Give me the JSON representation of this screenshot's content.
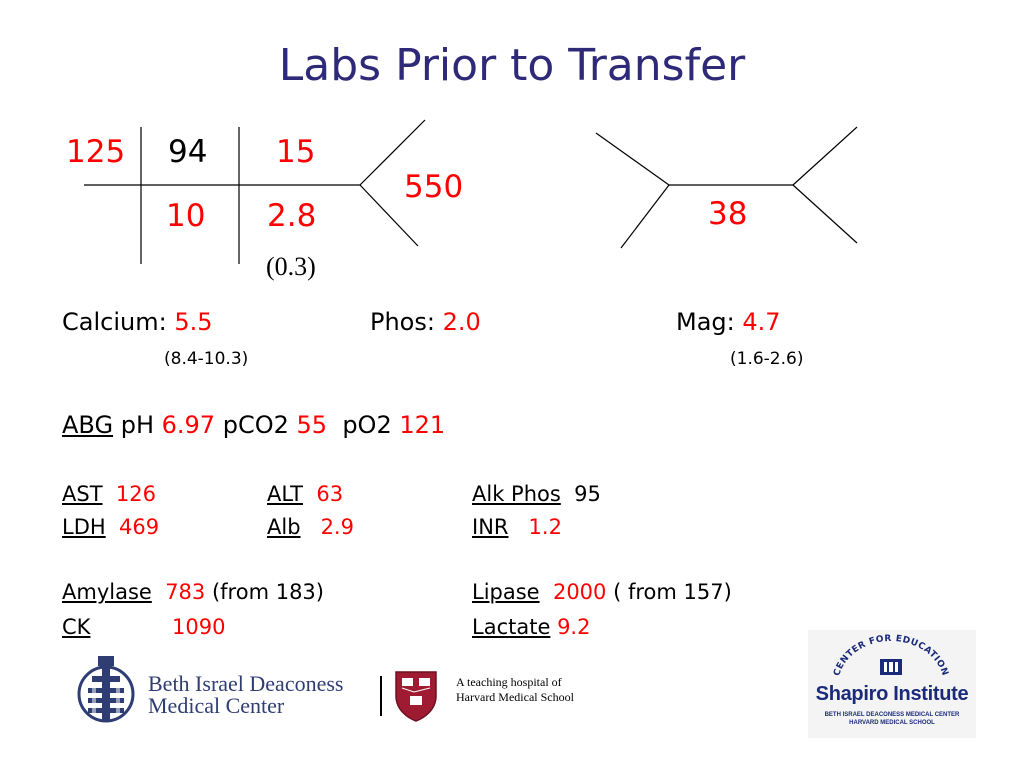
{
  "title": "Labs Prior to Transfer",
  "fishbone_bmp": {
    "na": "125",
    "cl": "94",
    "bun": "15",
    "k": "10",
    "co2": "2.8",
    "co2_note": "(0.3)",
    "glucose": "550"
  },
  "fishbone_cbc": {
    "value": "38"
  },
  "electrolytes": {
    "calcium_label": "Calcium:",
    "calcium_value": "5.5",
    "calcium_range": "(8.4-10.3)",
    "phos_label": "Phos:",
    "phos_value": "2.0",
    "mag_label": "Mag:",
    "mag_value": "4.7",
    "mag_range": "(1.6-2.6)"
  },
  "abg": {
    "label": "ABG",
    "ph_label": "pH",
    "ph_value": "6.97",
    "pco2_label": "pCO2",
    "pco2_value": "55",
    "po2_label": "pO2",
    "po2_value": "121"
  },
  "liver": {
    "ast_label": "AST",
    "ast_value": "126",
    "alt_label": "ALT",
    "alt_value": "63",
    "alkphos_label": "Alk Phos",
    "alkphos_value": "95",
    "ldh_label": "LDH",
    "ldh_value": "469",
    "alb_label": "Alb",
    "alb_value": "2.9",
    "inr_label": "INR",
    "inr_value": "1.2"
  },
  "pancreas": {
    "amylase_label": "Amylase",
    "amylase_value": "783",
    "amylase_from": "(from 183)",
    "lipase_label": "Lipase",
    "lipase_value": "2000",
    "lipase_from": "( from 157)",
    "ck_label": "CK",
    "ck_value": "1090",
    "lactate_label": "Lactate",
    "lactate_value": "9.2"
  },
  "footer": {
    "bidmc_line1": "Beth Israel Deaconess",
    "bidmc_line2": "Medical Center",
    "teaching_line1": "A teaching hospital of",
    "teaching_line2": "Harvard Medical School",
    "shapiro_arc": "CENTER FOR EDUCATION",
    "shapiro_name": "Shapiro Institute",
    "shapiro_sub1": "BETH ISRAEL DEACONESS MEDICAL CENTER",
    "shapiro_sub2": "HARVARD MEDICAL SCHOOL"
  },
  "colors": {
    "title": "#2e2a78",
    "abnormal": "#ff0000",
    "logo_navy": "#2e3d73",
    "harvard_crimson": "#9e1b32"
  }
}
